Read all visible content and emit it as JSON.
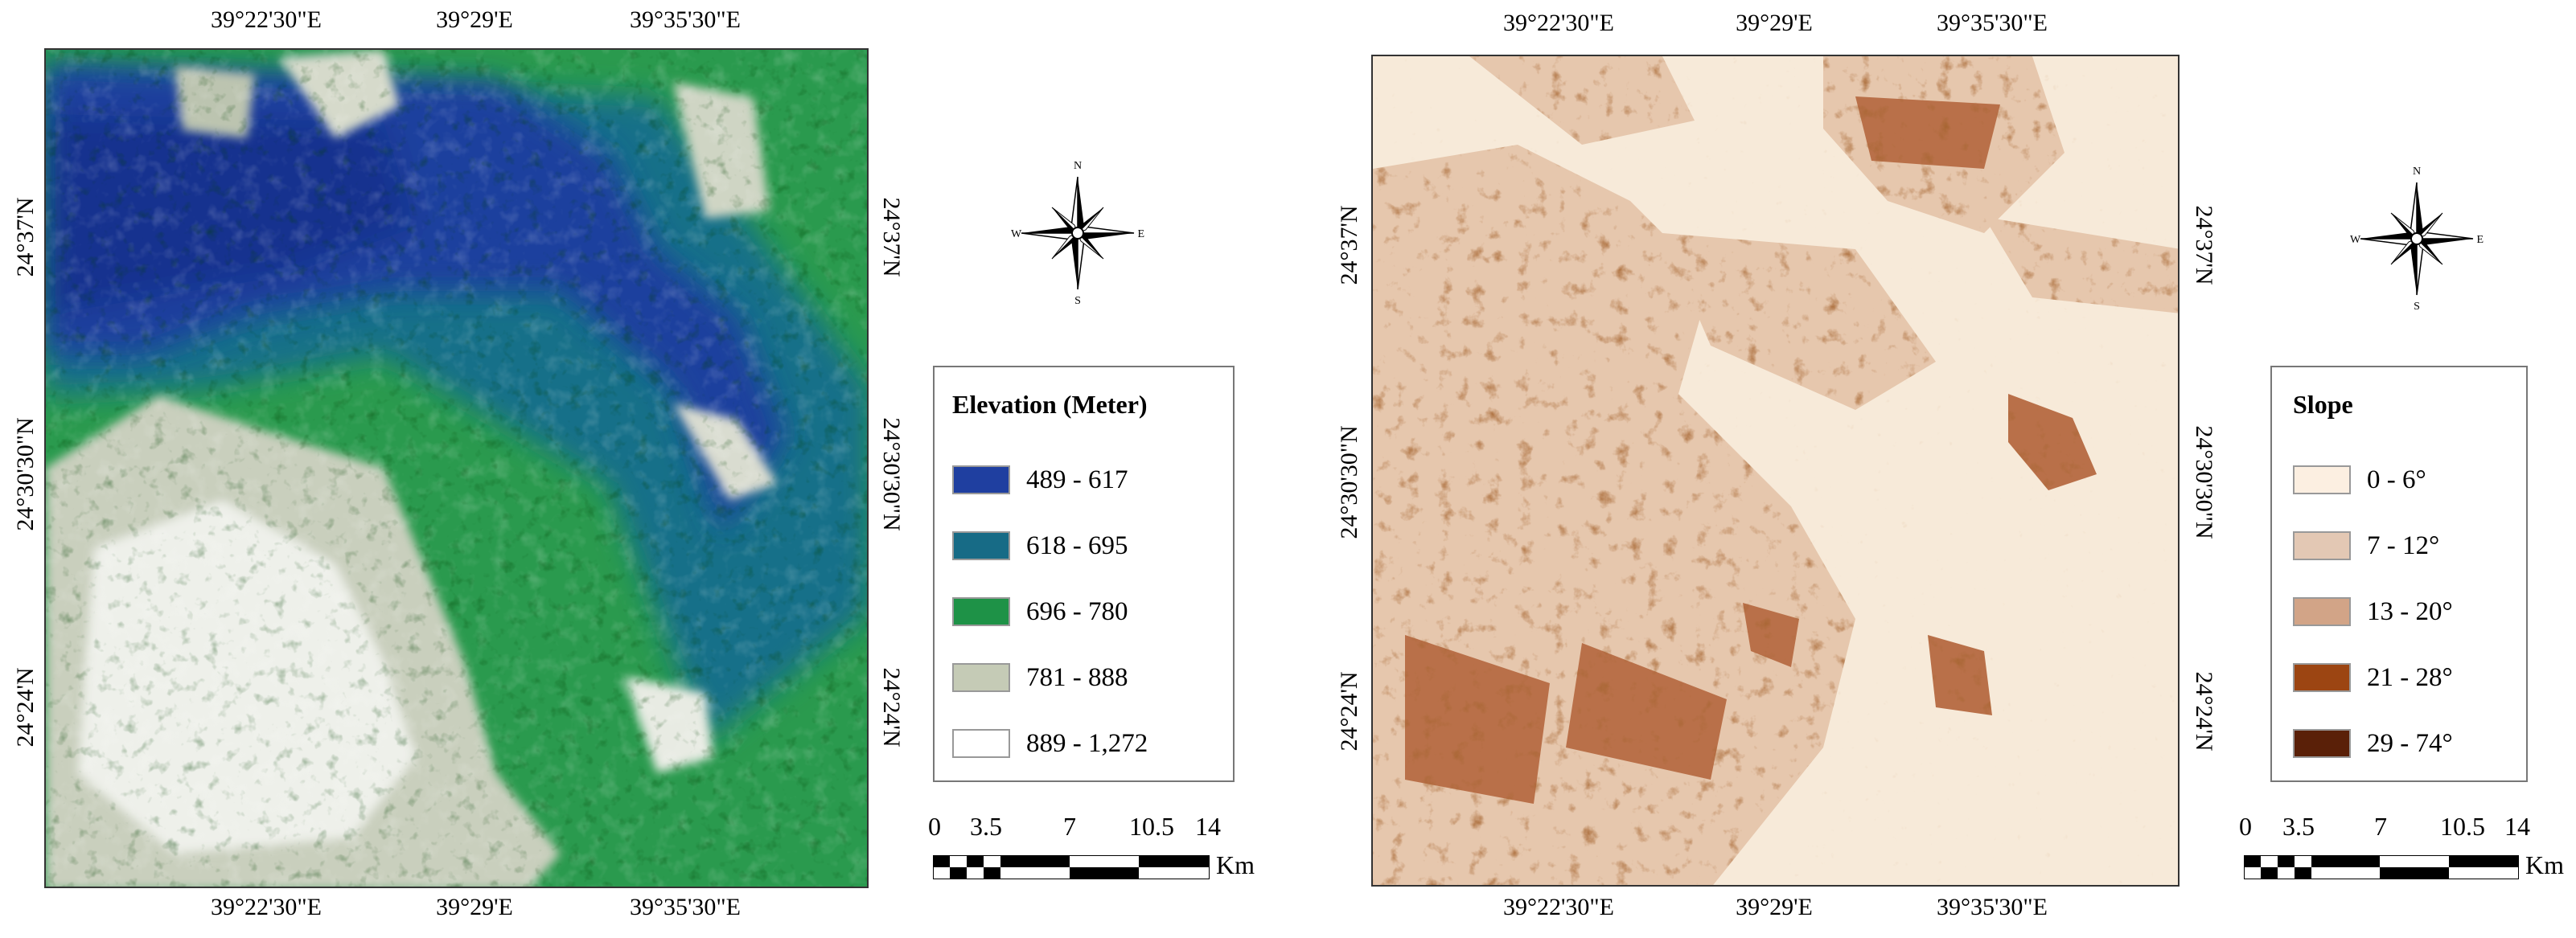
{
  "coordinates": {
    "longitudes": [
      "39°22'30\"E",
      "39°29'E",
      "39°35'30\"E"
    ],
    "latitudes": [
      "24°37'N",
      "24°30'30\"N",
      "24°24'N"
    ]
  },
  "compass": {
    "n": "N",
    "s": "S",
    "e": "E",
    "w": "W"
  },
  "scale": {
    "ticks": [
      "0",
      "3.5",
      "7",
      "10.5",
      "14"
    ],
    "unit": "Km"
  },
  "elevation_legend": {
    "title": "Elevation (Meter)",
    "items": [
      {
        "label": "489 - 617",
        "color": "#1f3fa0"
      },
      {
        "label": "618 - 695",
        "color": "#176b86"
      },
      {
        "label": "696 - 780",
        "color": "#1e9247"
      },
      {
        "label": "781 - 888",
        "color": "#c5cbb6"
      },
      {
        "label": "889 - 1,272",
        "color": "#ffffff"
      }
    ]
  },
  "slope_legend": {
    "title": "Slope",
    "items": [
      {
        "label": "0 - 6°",
        "color": "#fcefe1"
      },
      {
        "label": "7 - 12°",
        "color": "#e3c8b4"
      },
      {
        "label": "13 - 20°",
        "color": "#d2a487"
      },
      {
        "label": "21 - 28°",
        "color": "#9c4512"
      },
      {
        "label": "29 - 74°",
        "color": "#5a2008"
      }
    ]
  }
}
